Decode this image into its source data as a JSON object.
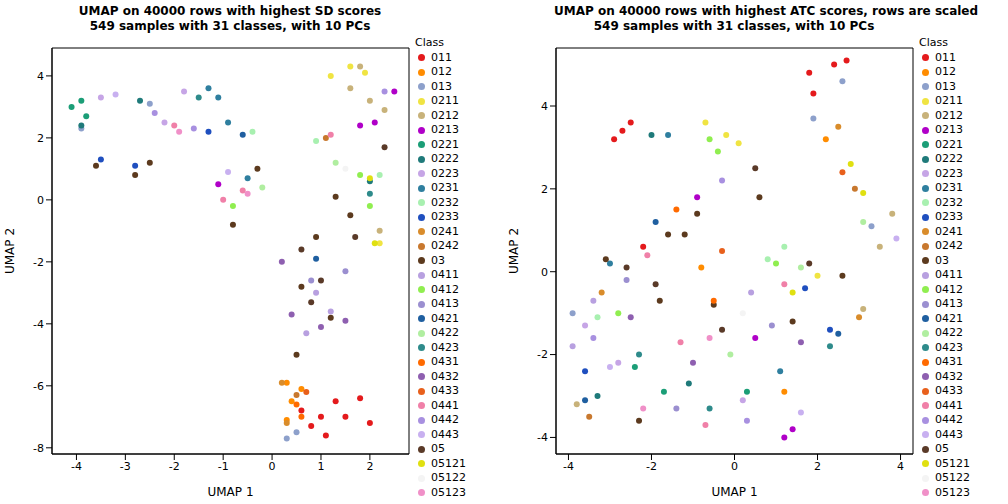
{
  "chart_data": [
    {
      "type": "scatter",
      "title": "UMAP on 40000 rows with highest SD scores",
      "subtitle": "549 samples with 31 classes, with 10 PCs",
      "x_label": "UMAP 1",
      "y_label": "UMAP 2",
      "legend_title": "Class",
      "legend": "right",
      "marker": "circle",
      "xlim": [
        -4.5,
        2.8
      ],
      "xticks": [
        -4,
        -3,
        -2,
        -1,
        0,
        1,
        2
      ],
      "ylim": [
        -8.2,
        4.9
      ],
      "yticks": [
        -8,
        -6,
        -4,
        -2,
        0,
        2,
        4
      ],
      "series": [
        {
          "name": "011",
          "color": "#E41A1C",
          "x": [
            1.0,
            0.8,
            1.3,
            1.5,
            1.8,
            0.6,
            2.0,
            1.1
          ],
          "y": [
            -7.0,
            -7.3,
            -6.5,
            -7.0,
            -6.4,
            -6.8,
            -7.2,
            -7.6
          ]
        },
        {
          "name": "012",
          "color": "#FF8C00",
          "x": [
            0.3,
            0.4,
            0.3,
            0.6
          ],
          "y": [
            -5.9,
            -6.5,
            -7.1,
            -6.1
          ]
        },
        {
          "name": "013",
          "color": "#8DA0CB",
          "x": [
            0.3,
            0.5,
            -3.9,
            -2.5
          ],
          "y": [
            -7.7,
            -7.5,
            2.3,
            3.1
          ]
        },
        {
          "name": "0211",
          "color": "#F0E442",
          "x": [
            1.2,
            1.6,
            1.9,
            2.2
          ],
          "y": [
            4.0,
            4.3,
            4.1,
            -1.4
          ]
        },
        {
          "name": "0212",
          "color": "#C8B27A",
          "x": [
            1.6,
            2.0,
            2.3,
            1.8,
            2.2
          ],
          "y": [
            3.6,
            3.2,
            2.9,
            4.3,
            -1.0
          ]
        },
        {
          "name": "0213",
          "color": "#B000C8",
          "x": [
            1.8,
            2.1,
            2.5,
            -1.1
          ],
          "y": [
            2.4,
            2.5,
            3.5,
            0.5
          ]
        },
        {
          "name": "0221",
          "color": "#1B9E77",
          "x": [
            -4.1,
            -3.8,
            -3.9
          ],
          "y": [
            3.0,
            2.7,
            3.2
          ]
        },
        {
          "name": "0222",
          "color": "#1F7A7A",
          "x": [
            -3.9,
            -2.7,
            2.0
          ],
          "y": [
            2.4,
            3.2,
            0.6
          ]
        },
        {
          "name": "0223",
          "color": "#C6A5E6",
          "x": [
            -3.5,
            -2.2,
            -1.8
          ],
          "y": [
            3.3,
            2.5,
            3.5
          ]
        },
        {
          "name": "0231",
          "color": "#2F7F9F",
          "x": [
            -1.1,
            -0.9,
            -0.5,
            -1.3
          ],
          "y": [
            3.3,
            2.5,
            0.7,
            3.6
          ]
        },
        {
          "name": "0232",
          "color": "#A8F0B0",
          "x": [
            -0.4,
            0.9,
            2.2
          ],
          "y": [
            2.2,
            1.9,
            0.8
          ]
        },
        {
          "name": "0233",
          "color": "#1F4FBF",
          "x": [
            -3.5,
            -2.8,
            -1.3
          ],
          "y": [
            1.3,
            1.1,
            2.2
          ]
        },
        {
          "name": "0241",
          "color": "#D98C2B",
          "x": [
            0.2,
            0.3
          ],
          "y": [
            -5.9,
            -7.2
          ]
        },
        {
          "name": "0242",
          "color": "#C8782E",
          "x": [
            0.5,
            1.1
          ],
          "y": [
            -6.3,
            2.0
          ]
        },
        {
          "name": "03",
          "color": "#5C3A1E",
          "x": [
            -3.6,
            -2.8,
            -2.5,
            -0.8,
            0.6,
            1.2,
            0.9,
            1.6,
            0.5,
            1.3,
            -0.3
          ],
          "y": [
            1.1,
            0.8,
            1.2,
            -0.8,
            -2.8,
            -3.8,
            -1.2,
            -0.5,
            -5.0,
            0.1,
            1.0
          ]
        },
        {
          "name": "0411",
          "color": "#B8A0E0",
          "x": [
            0.9,
            1.2,
            0.7
          ],
          "y": [
            -3.0,
            -3.6,
            -4.3
          ]
        },
        {
          "name": "0412",
          "color": "#90EE50",
          "x": [
            1.8,
            2.0,
            -0.8
          ],
          "y": [
            0.8,
            -0.2,
            -0.2
          ]
        },
        {
          "name": "0413",
          "color": "#9B8FD0",
          "x": [
            1.5,
            0.8
          ],
          "y": [
            -2.3,
            -2.6
          ]
        },
        {
          "name": "0421",
          "color": "#1F5FA0",
          "x": [
            -0.6,
            0.9
          ],
          "y": [
            2.1,
            -1.9
          ]
        },
        {
          "name": "0422",
          "color": "#B0EEA0",
          "x": [
            1.3,
            -0.2
          ],
          "y": [
            1.2,
            0.4
          ]
        },
        {
          "name": "0423",
          "color": "#2E8B8B",
          "x": [
            2.0,
            -1.5
          ],
          "y": [
            0.2,
            3.3
          ]
        },
        {
          "name": "0431",
          "color": "#FF6A00",
          "x": [
            0.5,
            0.6
          ],
          "y": [
            -6.6,
            -7.0
          ]
        },
        {
          "name": "0432",
          "color": "#8E5FB0",
          "x": [
            0.4,
            1.5,
            1.0,
            0.2
          ],
          "y": [
            -3.7,
            -3.9,
            -4.1,
            -2.0
          ]
        },
        {
          "name": "0433",
          "color": "#E8601C",
          "x": [
            0.7
          ],
          "y": [
            -6.2
          ]
        },
        {
          "name": "0441",
          "color": "#F080A8",
          "x": [
            -1.0,
            -0.6,
            -2.0,
            1.2
          ],
          "y": [
            0.0,
            0.3,
            2.4,
            2.1
          ]
        },
        {
          "name": "0442",
          "color": "#A890E0",
          "x": [
            -2.4,
            -1.6,
            2.3
          ],
          "y": [
            2.8,
            2.3,
            3.5
          ]
        },
        {
          "name": "0443",
          "color": "#C8B0F0",
          "x": [
            -3.2,
            -0.9
          ],
          "y": [
            3.4,
            0.9
          ]
        },
        {
          "name": "05",
          "color": "#5A3A28",
          "x": [
            0.6,
            1.0,
            0.8,
            1.7,
            2.3
          ],
          "y": [
            -1.6,
            -2.6,
            -3.3,
            -1.2,
            1.7
          ]
        },
        {
          "name": "05121",
          "color": "#E0E010",
          "x": [
            2.1,
            2.0
          ],
          "y": [
            -1.4,
            0.7
          ]
        },
        {
          "name": "05122",
          "color": "#F4F4F4",
          "x": [
            1.5
          ],
          "y": [
            1.0
          ]
        },
        {
          "name": "05123",
          "color": "#F090C8",
          "x": [
            -1.9,
            -0.5
          ],
          "y": [
            2.2,
            0.2
          ]
        }
      ]
    },
    {
      "type": "scatter",
      "title": "UMAP on 40000 rows with highest ATC scores, rows are scaled",
      "subtitle": "549 samples with 31 classes, with 10 PCs",
      "x_label": "UMAP 1",
      "y_label": "UMAP 2",
      "legend_title": "Class",
      "legend": "right",
      "marker": "circle",
      "xlim": [
        -4.3,
        4.3
      ],
      "xticks": [
        -4,
        -2,
        0,
        2,
        4
      ],
      "ylim": [
        -4.4,
        5.4
      ],
      "yticks": [
        -4,
        -2,
        0,
        2,
        4
      ],
      "series": [
        {
          "name": "011",
          "color": "#E41A1C",
          "x": [
            -2.7,
            -2.5,
            -2.9,
            1.8,
            2.4,
            2.7,
            1.9,
            -2.2
          ],
          "y": [
            3.4,
            3.6,
            3.2,
            4.8,
            5.0,
            5.1,
            4.3,
            0.6
          ]
        },
        {
          "name": "012",
          "color": "#FF8C00",
          "x": [
            2.2,
            -0.8,
            1.2
          ],
          "y": [
            3.2,
            0.1,
            -2.9
          ]
        },
        {
          "name": "013",
          "color": "#8DA0CB",
          "x": [
            1.9,
            2.6,
            3.3,
            -3.9
          ],
          "y": [
            3.7,
            4.6,
            1.1,
            -1.0
          ]
        },
        {
          "name": "0211",
          "color": "#F0E442",
          "x": [
            -0.7,
            -0.2,
            0.1,
            2.0
          ],
          "y": [
            3.6,
            3.3,
            3.1,
            -0.1
          ]
        },
        {
          "name": "0212",
          "color": "#C8B27A",
          "x": [
            3.1,
            3.5,
            3.8,
            -3.8
          ],
          "y": [
            -0.9,
            0.6,
            1.4,
            -3.2
          ]
        },
        {
          "name": "0213",
          "color": "#B000C8",
          "x": [
            1.2,
            1.4,
            0.5,
            -0.9
          ],
          "y": [
            -4.0,
            -3.8,
            -1.6,
            1.8
          ]
        },
        {
          "name": "0221",
          "color": "#1B9E77",
          "x": [
            -2.4,
            -1.7,
            0.3
          ],
          "y": [
            -2.3,
            -2.9,
            -2.9
          ]
        },
        {
          "name": "0222",
          "color": "#1F7A7A",
          "x": [
            -1.1,
            -3.3,
            -2.0
          ],
          "y": [
            -2.7,
            -3.0,
            3.3
          ]
        },
        {
          "name": "0223",
          "color": "#C6A5E6",
          "x": [
            -3.6,
            -2.8,
            0.2
          ],
          "y": [
            -1.3,
            -2.2,
            -3.1
          ]
        },
        {
          "name": "0231",
          "color": "#2F7F9F",
          "x": [
            -1.6,
            1.1,
            -3.0
          ],
          "y": [
            3.3,
            -2.4,
            0.2
          ]
        },
        {
          "name": "0232",
          "color": "#A8F0B0",
          "x": [
            1.2,
            0.8,
            -3.3
          ],
          "y": [
            0.6,
            0.3,
            -1.1
          ]
        },
        {
          "name": "0233",
          "color": "#1F4FBF",
          "x": [
            -3.6,
            1.7,
            2.3
          ],
          "y": [
            -2.4,
            -0.4,
            -1.4
          ]
        },
        {
          "name": "0241",
          "color": "#D98C2B",
          "x": [
            2.5,
            3.0,
            -3.2
          ],
          "y": [
            3.5,
            -1.1,
            -0.5
          ]
        },
        {
          "name": "0242",
          "color": "#C8782E",
          "x": [
            -3.5,
            2.9
          ],
          "y": [
            -3.5,
            2.0
          ]
        },
        {
          "name": "03",
          "color": "#5C3A1E",
          "x": [
            -1.6,
            -1.2,
            -0.9,
            -3.1,
            0.6,
            -1.8,
            -2.3,
            2.6,
            1.4,
            -0.5
          ],
          "y": [
            0.9,
            0.9,
            1.4,
            0.3,
            1.8,
            -0.7,
            -3.6,
            -0.1,
            -1.2,
            -0.8
          ]
        },
        {
          "name": "0411",
          "color": "#B8A0E0",
          "x": [
            -3.9,
            -3.4,
            0.4
          ],
          "y": [
            -1.8,
            -0.7,
            -0.5
          ]
        },
        {
          "name": "0412",
          "color": "#90EE50",
          "x": [
            -0.6,
            -0.4,
            1.0,
            -2.8
          ],
          "y": [
            3.2,
            2.9,
            0.2,
            -1.0
          ]
        },
        {
          "name": "0413",
          "color": "#9B8FD0",
          "x": [
            -2.6,
            -1.4,
            0.9
          ],
          "y": [
            -0.2,
            -3.3,
            -1.3
          ]
        },
        {
          "name": "0421",
          "color": "#1F5FA0",
          "x": [
            -3.6,
            -1.9,
            2.5
          ],
          "y": [
            -3.1,
            1.2,
            -1.5
          ]
        },
        {
          "name": "0422",
          "color": "#B0EEA0",
          "x": [
            1.6,
            -0.1,
            3.1
          ],
          "y": [
            0.1,
            -2.0,
            1.2
          ]
        },
        {
          "name": "0423",
          "color": "#2E8B8B",
          "x": [
            -2.3,
            -0.6,
            2.3
          ],
          "y": [
            -2.0,
            -3.3,
            -1.8
          ]
        },
        {
          "name": "0431",
          "color": "#FF6A00",
          "x": [
            -1.4,
            -0.5
          ],
          "y": [
            1.5,
            -0.7
          ]
        },
        {
          "name": "0432",
          "color": "#8E5FB0",
          "x": [
            -2.5,
            -1.0,
            1.6
          ],
          "y": [
            -1.1,
            -2.2,
            -1.7
          ]
        },
        {
          "name": "0433",
          "color": "#E8601C",
          "x": [
            -0.3,
            2.6
          ],
          "y": [
            0.5,
            2.4
          ]
        },
        {
          "name": "0441",
          "color": "#F080A8",
          "x": [
            -1.3,
            -0.7,
            1.2,
            -2.1
          ],
          "y": [
            -1.7,
            -3.7,
            -0.3,
            0.4
          ]
        },
        {
          "name": "0442",
          "color": "#A890E0",
          "x": [
            -3.4,
            -0.3,
            0.3
          ],
          "y": [
            -1.6,
            2.2,
            -3.6
          ]
        },
        {
          "name": "0443",
          "color": "#C8B0F0",
          "x": [
            -3.0,
            1.6,
            3.9
          ],
          "y": [
            -2.3,
            -3.4,
            0.8
          ]
        },
        {
          "name": "05",
          "color": "#5A3A28",
          "x": [
            -1.9,
            -0.3,
            0.5,
            -2.6,
            1.8
          ],
          "y": [
            -0.3,
            -1.4,
            2.5,
            0.1,
            0.2
          ]
        },
        {
          "name": "05121",
          "color": "#E0E010",
          "x": [
            3.1,
            2.8,
            1.4
          ],
          "y": [
            1.9,
            2.6,
            -0.5
          ]
        },
        {
          "name": "05122",
          "color": "#F4F4F4",
          "x": [
            0.2
          ],
          "y": [
            -1.0
          ]
        },
        {
          "name": "05123",
          "color": "#F090C8",
          "x": [
            -0.6,
            -2.2
          ],
          "y": [
            -1.6,
            -3.3
          ]
        }
      ]
    }
  ]
}
